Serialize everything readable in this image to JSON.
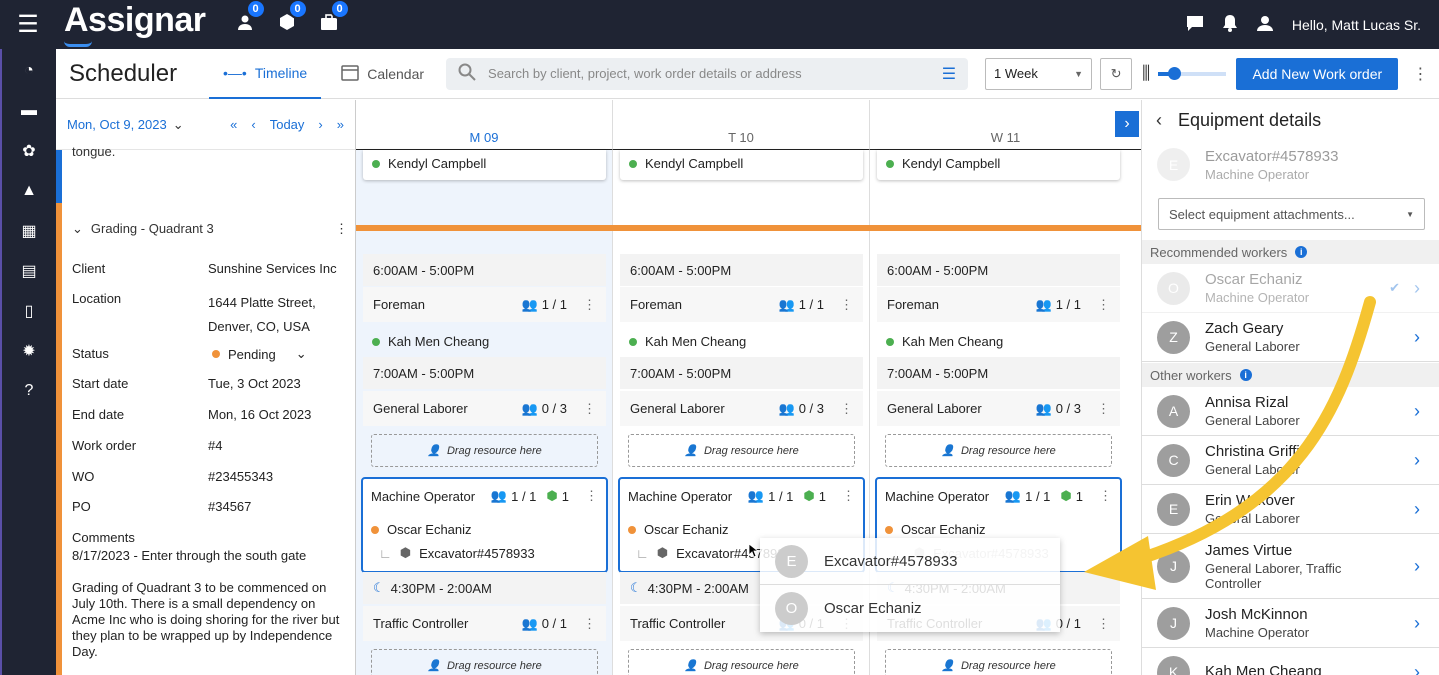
{
  "app": {
    "logo": "Assignar",
    "greeting": "Hello, Matt Lucas Sr.",
    "badges": [
      "0",
      "0",
      "0"
    ]
  },
  "header": {
    "title": "Scheduler",
    "tab_timeline": "Timeline",
    "tab_calendar": "Calendar",
    "search_placeholder": "Search by client, project, work order details or address",
    "range": "1 Week",
    "add_button": "Add New Work order"
  },
  "datebar": {
    "date": "Mon, Oct 9, 2023",
    "today": "Today"
  },
  "left": {
    "tongue": "tongue.",
    "section_title": "Grading - Quadrant 3",
    "client_k": "Client",
    "client_v": "Sunshine Services Inc",
    "location_k": "Location",
    "location_v1": "1644 Platte Street,",
    "location_v2": "Denver, CO, USA",
    "status_k": "Status",
    "status_v": "Pending",
    "start_k": "Start date",
    "start_v": "Tue, 3 Oct 2023",
    "end_k": "End date",
    "end_v": "Mon, 16 Oct 2023",
    "wo_k": "Work order",
    "wo_v": "#4",
    "wonum_k": "WO",
    "wonum_v": "#23455343",
    "po_k": "PO",
    "po_v": "#34567",
    "comments_k": "Comments",
    "comment1": "8/17/2023 - Enter through the south gate",
    "comment2": "Grading of Quadrant 3 to be commenced on July 10th.  There is a small dependency on Acme Inc who is doing shoring for the river but they plan to be wrapped up by Independence Day."
  },
  "days": [
    {
      "label": "M 09"
    },
    {
      "label": "T 10"
    },
    {
      "label": "W 11"
    }
  ],
  "timeline": {
    "top_person": "Kendyl Campbell",
    "shift1": "6:00AM - 5:00PM",
    "foreman": "Foreman",
    "foreman_count": "1 / 1",
    "foreman_person": "Kah Men Cheang",
    "shift2": "7:00AM - 5:00PM",
    "laborer": "General Laborer",
    "laborer_count": "0 / 3",
    "drag": "Drag resource here",
    "machine": "Machine Operator",
    "machine_count": "1 / 1",
    "machine_eq_count": "1",
    "machine_person": "Oscar Echaniz",
    "equipment": "Excavator#4578933",
    "shift3": "4:30PM - 2:00AM",
    "traffic": "Traffic Controller",
    "traffic_count": "0 / 1"
  },
  "popup": {
    "item1": "Excavator#4578933",
    "item1_initial": "E",
    "item2": "Oscar Echaniz",
    "item2_initial": "O"
  },
  "equipment": {
    "title": "Equipment details",
    "eq_name": "Excavator#4578933",
    "eq_role": "Machine Operator",
    "eq_initial": "E",
    "attach_placeholder": "Select equipment attachments...",
    "recommended": "Recommended workers",
    "other": "Other workers",
    "recommended_workers": [
      {
        "initial": "O",
        "name": "Oscar Echaniz",
        "role": "Machine Operator"
      },
      {
        "initial": "Z",
        "name": "Zach Geary",
        "role": "General Laborer"
      }
    ],
    "other_workers": [
      {
        "initial": "A",
        "name": "Annisa Rizal",
        "role": "General Laborer"
      },
      {
        "initial": "C",
        "name": "Christina Griffin",
        "role": "General Laborer"
      },
      {
        "initial": "E",
        "name": "Erin Wexover",
        "role": "General Laborer"
      },
      {
        "initial": "J",
        "name": "James Virtue",
        "role": "General Laborer, Traffic Controller"
      },
      {
        "initial": "J",
        "name": "Josh McKinnon",
        "role": "Machine Operator"
      },
      {
        "initial": "K",
        "name": "Kah Men Cheang",
        "role": ""
      }
    ]
  },
  "colors": {
    "accent": "#1a6fd6",
    "nav": "#1f2433",
    "orange": "#f0923a",
    "green": "#4caf50",
    "arrow": "#f5c431"
  }
}
